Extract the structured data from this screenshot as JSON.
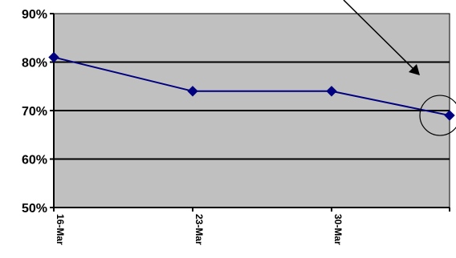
{
  "chart_data": {
    "type": "line",
    "x": [
      "16-Mar",
      "23-Mar",
      "30-Mar",
      ""
    ],
    "x_tick_labels": [
      "16-Mar",
      "23-Mar",
      "30-Mar"
    ],
    "series": [
      {
        "values": [
          81,
          74,
          74,
          69
        ],
        "color": "#000080",
        "marker": "diamond"
      }
    ],
    "ylim": [
      50,
      90
    ],
    "y_ticks": [
      50,
      60,
      70,
      80,
      90
    ],
    "y_tick_format": "percent",
    "plot_background": "#c0c0c0",
    "gridlines": true,
    "legend": "none",
    "annotation": {
      "type": "arrow-and-circle",
      "target_index": 3
    }
  }
}
